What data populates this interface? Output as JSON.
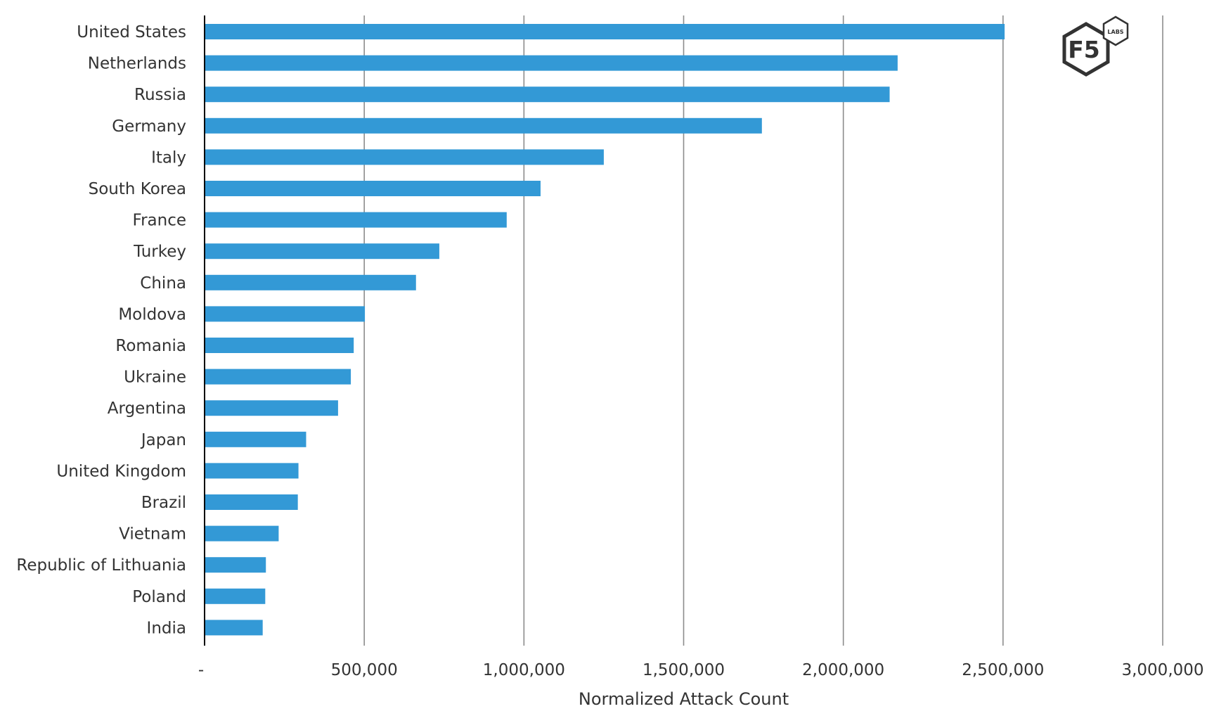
{
  "chart_data": {
    "type": "bar",
    "orientation": "horizontal",
    "categories": [
      "United States",
      "Netherlands",
      "Russia",
      "Germany",
      "Italy",
      "South Korea",
      "France",
      "Turkey",
      "China",
      "Moldova",
      "Romania",
      "Ukraine",
      "Argentina",
      "Japan",
      "United Kingdom",
      "Brazil",
      "Vietnam",
      "Republic of Lithuania",
      "Poland",
      "India"
    ],
    "values": [
      2505000,
      2170000,
      2145000,
      1745000,
      1250000,
      1052000,
      946000,
      735000,
      662000,
      502000,
      467000,
      458000,
      418000,
      318000,
      294000,
      292000,
      232000,
      192000,
      190000,
      182000
    ],
    "title": "",
    "xlabel": "Normalized Attack Count",
    "ylabel": "",
    "xlim": [
      0,
      3000000
    ],
    "xticks": [
      0,
      500000,
      1000000,
      1500000,
      2000000,
      2500000,
      3000000
    ],
    "xtick_labels": [
      "-",
      "500,000",
      "1,000,000",
      "1,500,000",
      "2,000,000",
      "2,500,000",
      "3,000,000"
    ],
    "grid": "vertical",
    "bar_color": "#3399D6",
    "grid_color": "#8c8c8c",
    "axis_color": "#000000"
  },
  "logo": {
    "main_text": "F5",
    "badge_text": "LABS",
    "color": "#333333"
  }
}
